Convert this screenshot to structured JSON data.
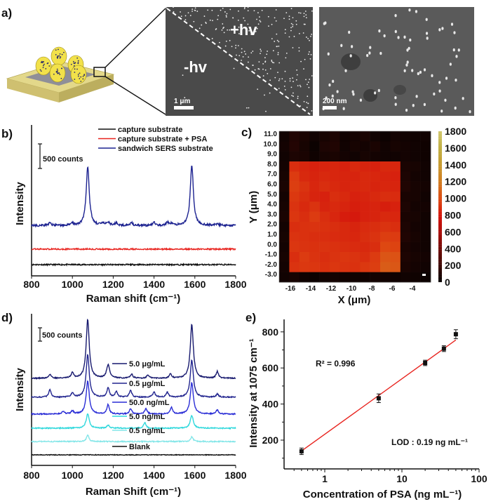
{
  "panel_labels": {
    "a": "a)",
    "b": "b)",
    "c": "c)",
    "d": "d)",
    "e": "e)"
  },
  "panel_a": {
    "sem_left": {
      "label_plus": "+hv",
      "label_minus": "-hv",
      "scale_bar": "1 μm"
    },
    "sem_right": {
      "scale_bar": "200 nm"
    },
    "colors": {
      "substrate": "#d8cc7a",
      "particles": "#f2e14a",
      "dots": "#2a2a6a"
    }
  },
  "chart_data": [
    {
      "panel": "b",
      "type": "line",
      "xlabel": "Raman shift (cm⁻¹)",
      "ylabel": "Intensity",
      "xlim": [
        800,
        1800
      ],
      "x_ticks": [
        "800",
        "1000",
        "1200",
        "1400",
        "1600",
        "1800"
      ],
      "scale_bar": "500 counts",
      "legend_position": "top",
      "series": [
        {
          "name": "capture substrate",
          "color": "#111111",
          "offset": 0,
          "peaks": []
        },
        {
          "name": "capture substrate + PSA",
          "color": "#e8231e",
          "offset": 310,
          "peaks": []
        },
        {
          "name": "sandwich SERS substrate",
          "color": "#1c2290",
          "offset": 780,
          "peaks": [
            [
              890,
              60
            ],
            [
              1000,
              45
            ],
            [
              1075,
              1180
            ],
            [
              1150,
              40
            ],
            [
              1175,
              70
            ],
            [
              1215,
              55
            ],
            [
              1290,
              50
            ],
            [
              1400,
              65
            ],
            [
              1465,
              60
            ],
            [
              1485,
              40
            ],
            [
              1585,
              1210
            ],
            [
              1710,
              35
            ]
          ]
        }
      ]
    },
    {
      "panel": "c",
      "type": "heatmap",
      "xlabel": "X (μm)",
      "ylabel": "Y (μm)",
      "x_ticks": [
        "-16",
        "-14",
        "-12",
        "-10",
        "-8",
        "-6",
        "-4"
      ],
      "y_ticks": [
        "11.0",
        "10.0",
        "9.0",
        "8.0",
        "7.0",
        "6.0",
        "5.0",
        "4.0",
        "3.0",
        "2.0",
        "1.0",
        "0.0",
        "-1.0",
        "-2.0",
        "-3.0"
      ],
      "colorbar_ticks": [
        "1800",
        "1600",
        "1400",
        "1200",
        "1000",
        "800",
        "600",
        "400",
        "200",
        "0"
      ],
      "color_range": [
        0,
        1800
      ],
      "colormap": [
        "#000000",
        "#3a0905",
        "#6e0c08",
        "#a80d0a",
        "#d4140c",
        "#de4812",
        "#d27a20",
        "#c89a30",
        "#c0ae40",
        "#cfc56a"
      ],
      "values": [
        [
          60,
          110,
          90,
          60,
          80,
          100,
          50,
          70,
          90,
          60,
          40,
          70,
          60,
          50,
          60
        ],
        [
          70,
          120,
          80,
          40,
          100,
          110,
          60,
          80,
          70,
          90,
          60,
          80,
          70,
          60,
          50
        ],
        [
          60,
          100,
          90,
          50,
          80,
          90,
          70,
          60,
          80,
          70,
          60,
          60,
          70,
          60,
          50
        ],
        [
          70,
          900,
          870,
          850,
          860,
          870,
          850,
          880,
          860,
          850,
          880,
          870,
          90,
          80,
          60
        ],
        [
          80,
          950,
          880,
          860,
          880,
          870,
          860,
          860,
          880,
          870,
          860,
          850,
          100,
          70,
          60
        ],
        [
          90,
          960,
          920,
          870,
          900,
          880,
          860,
          870,
          880,
          860,
          870,
          860,
          110,
          80,
          70
        ],
        [
          70,
          940,
          900,
          860,
          850,
          900,
          880,
          850,
          860,
          880,
          900,
          890,
          90,
          80,
          60
        ],
        [
          80,
          920,
          880,
          920,
          860,
          880,
          860,
          840,
          850,
          860,
          840,
          850,
          100,
          70,
          70
        ],
        [
          90,
          930,
          900,
          950,
          900,
          870,
          830,
          820,
          850,
          860,
          880,
          870,
          90,
          80,
          60
        ],
        [
          70,
          900,
          910,
          920,
          910,
          900,
          880,
          860,
          890,
          900,
          920,
          900,
          100,
          70,
          60
        ],
        [
          80,
          920,
          910,
          900,
          900,
          890,
          880,
          870,
          900,
          920,
          960,
          950,
          110,
          80,
          60
        ],
        [
          70,
          930,
          920,
          910,
          920,
          910,
          900,
          890,
          880,
          900,
          1000,
          980,
          90,
          70,
          60
        ],
        [
          80,
          900,
          950,
          920,
          900,
          920,
          930,
          920,
          900,
          950,
          1050,
          1040,
          100,
          80,
          70
        ],
        [
          70,
          920,
          940,
          930,
          910,
          930,
          920,
          910,
          940,
          960,
          1080,
          1060,
          90,
          70,
          60
        ],
        [
          60,
          80,
          50,
          40,
          60,
          70,
          50,
          60,
          50,
          70,
          60,
          50,
          60,
          50,
          40
        ]
      ]
    },
    {
      "panel": "d",
      "type": "line",
      "xlabel": "Raman Shift (cm⁻¹)",
      "ylabel": "Intensity",
      "xlim": [
        800,
        1800
      ],
      "x_ticks": [
        "800",
        "1000",
        "1200",
        "1400",
        "1600",
        "1800"
      ],
      "scale_bar": "500 counts",
      "series": [
        {
          "name": "5.0 μg/mL",
          "color": "#17196e",
          "offset": 2870,
          "peaks": [
            [
              890,
              150
            ],
            [
              1000,
              200
            ],
            [
              1075,
              2210
            ],
            [
              1175,
              500
            ],
            [
              1290,
              150
            ],
            [
              1370,
              120
            ],
            [
              1480,
              150
            ],
            [
              1585,
              2030
            ],
            [
              1710,
              250
            ]
          ]
        },
        {
          "name": "0.5 μg/mL",
          "color": "#20238e",
          "offset": 2160,
          "peaks": [
            [
              890,
              280
            ],
            [
              1000,
              150
            ],
            [
              1075,
              1600
            ],
            [
              1175,
              350
            ],
            [
              1215,
              200
            ],
            [
              1285,
              250
            ],
            [
              1400,
              200
            ],
            [
              1465,
              180
            ],
            [
              1585,
              1400
            ],
            [
              1710,
              120
            ]
          ]
        },
        {
          "name": "50.0 ng/mL",
          "color": "#2a2dd6",
          "offset": 1530,
          "peaks": [
            [
              955,
              100
            ],
            [
              1000,
              120
            ],
            [
              1075,
              1240
            ],
            [
              1175,
              350
            ],
            [
              1285,
              200
            ],
            [
              1360,
              200
            ],
            [
              1485,
              250
            ],
            [
              1585,
              1180
            ],
            [
              1710,
              150
            ]
          ]
        },
        {
          "name": "5.0 ng/mL",
          "color": "#2fd8dc",
          "offset": 1000,
          "peaks": [
            [
              1075,
              530
            ],
            [
              1175,
              120
            ],
            [
              1355,
              200
            ],
            [
              1585,
              470
            ]
          ]
        },
        {
          "name": "0.5 ng/mL",
          "color": "#84e6e8",
          "offset": 500,
          "peaks": [
            [
              1075,
              240
            ],
            [
              1585,
              180
            ]
          ]
        },
        {
          "name": "Blank",
          "color": "#111111",
          "offset": 0,
          "peaks": []
        }
      ]
    },
    {
      "panel": "e",
      "type": "scatter",
      "xlabel": "Concentration of PSA (ng mL⁻¹)",
      "ylabel": "Intensity at 1075 cm⁻¹",
      "x_scale": "log",
      "xlim": [
        0.3,
        100
      ],
      "ylim": [
        40,
        870
      ],
      "x_ticks": [
        "1",
        "10",
        "100"
      ],
      "y_ticks": [
        "200",
        "400",
        "600",
        "800"
      ],
      "points": [
        {
          "x": 0.5,
          "y": 138,
          "err": 18
        },
        {
          "x": 5,
          "y": 432,
          "err": 24
        },
        {
          "x": 20,
          "y": 628,
          "err": 15
        },
        {
          "x": 35,
          "y": 707,
          "err": 16
        },
        {
          "x": 50,
          "y": 787,
          "err": 25
        }
      ],
      "fit": {
        "x": [
          0.5,
          50
        ],
        "y": [
          140,
          755
        ],
        "color": "#e8231e"
      },
      "annotations": {
        "r2": "R² = 0.996",
        "lod": "LOD : 0.19 ng mL⁻¹"
      }
    }
  ]
}
